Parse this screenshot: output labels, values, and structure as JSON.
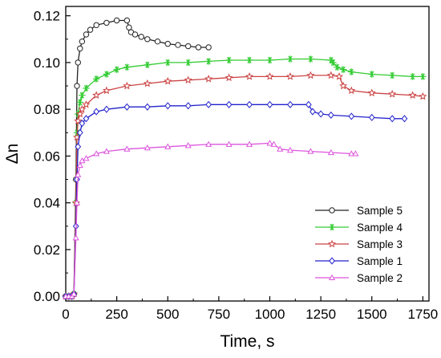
{
  "chart_data": {
    "type": "line",
    "xlabel": "Time, s",
    "ylabel": "Δn",
    "xlim": [
      0,
      1780
    ],
    "ylim": [
      -0.002,
      0.124
    ],
    "x_ticks": [
      0,
      250,
      500,
      750,
      1000,
      1250,
      1500,
      1750
    ],
    "x_tick_labels": [
      "0",
      "250",
      "500",
      "750",
      "1000",
      "1250",
      "1500",
      "1750"
    ],
    "y_ticks": [
      0.0,
      0.02,
      0.04,
      0.06,
      0.08,
      0.1,
      0.12
    ],
    "y_tick_labels": [
      "0.00",
      "0.02",
      "0.04",
      "0.06",
      "0.08",
      "0.10",
      "0.12"
    ],
    "legend_position": "lower-right",
    "series": [
      {
        "name": "Sample 5",
        "color": "#222222",
        "marker": "circle",
        "x": [
          0,
          15,
          30,
          40,
          50,
          55,
          60,
          70,
          80,
          100,
          120,
          150,
          200,
          250,
          300,
          310,
          320,
          340,
          370,
          400,
          450,
          500,
          550,
          600,
          650,
          700
        ],
        "y": [
          0.0,
          0.0,
          0.0,
          0.001,
          0.05,
          0.09,
          0.1,
          0.106,
          0.109,
          0.112,
          0.114,
          0.116,
          0.117,
          0.118,
          0.118,
          0.115,
          0.113,
          0.112,
          0.111,
          0.11,
          0.109,
          0.108,
          0.1075,
          0.107,
          0.1065,
          0.1065
        ]
      },
      {
        "name": "Sample 4",
        "color": "#33cc33",
        "marker": "asterisk",
        "x": [
          0,
          15,
          30,
          40,
          50,
          55,
          60,
          70,
          80,
          100,
          150,
          200,
          250,
          300,
          400,
          500,
          600,
          700,
          800,
          900,
          1000,
          1100,
          1200,
          1300,
          1310,
          1330,
          1360,
          1400,
          1500,
          1600,
          1700,
          1750
        ],
        "y": [
          0.0,
          0.0,
          0.0,
          0.001,
          0.04,
          0.07,
          0.078,
          0.083,
          0.086,
          0.089,
          0.093,
          0.095,
          0.097,
          0.098,
          0.099,
          0.1,
          0.1,
          0.1005,
          0.101,
          0.101,
          0.101,
          0.1015,
          0.1015,
          0.101,
          0.1,
          0.098,
          0.097,
          0.096,
          0.095,
          0.0945,
          0.094,
          0.094
        ]
      },
      {
        "name": "Sample 3",
        "color": "#cc4444",
        "marker": "star",
        "x": [
          0,
          15,
          30,
          40,
          50,
          55,
          60,
          70,
          80,
          100,
          150,
          200,
          300,
          400,
          500,
          600,
          700,
          800,
          900,
          1000,
          1100,
          1200,
          1300,
          1340,
          1360,
          1400,
          1500,
          1600,
          1700,
          1750
        ],
        "y": [
          0.0,
          0.0,
          0.0,
          0.001,
          0.04,
          0.068,
          0.075,
          0.078,
          0.08,
          0.082,
          0.086,
          0.088,
          0.09,
          0.091,
          0.092,
          0.0925,
          0.093,
          0.0935,
          0.094,
          0.094,
          0.094,
          0.0945,
          0.0945,
          0.094,
          0.09,
          0.088,
          0.087,
          0.0865,
          0.086,
          0.0855
        ]
      },
      {
        "name": "Sample 1",
        "color": "#2222cc",
        "marker": "diamond",
        "x": [
          0,
          15,
          30,
          40,
          50,
          55,
          60,
          70,
          80,
          100,
          150,
          200,
          300,
          400,
          500,
          600,
          700,
          800,
          900,
          1000,
          1100,
          1190,
          1210,
          1250,
          1300,
          1400,
          1500,
          1600,
          1660
        ],
        "y": [
          0.0,
          0.0,
          0.0,
          0.001,
          0.03,
          0.05,
          0.064,
          0.07,
          0.074,
          0.076,
          0.079,
          0.08,
          0.081,
          0.081,
          0.0815,
          0.0815,
          0.082,
          0.082,
          0.082,
          0.082,
          0.082,
          0.082,
          0.079,
          0.078,
          0.0775,
          0.077,
          0.0765,
          0.076,
          0.076
        ]
      },
      {
        "name": "Sample 2",
        "color": "#dd55dd",
        "marker": "triangle",
        "x": [
          0,
          15,
          30,
          40,
          50,
          55,
          60,
          70,
          80,
          100,
          150,
          200,
          300,
          400,
          500,
          600,
          700,
          800,
          900,
          1000,
          1020,
          1050,
          1100,
          1200,
          1300,
          1400,
          1420
        ],
        "y": [
          0.0,
          0.0,
          0.0,
          0.001,
          0.025,
          0.04,
          0.052,
          0.056,
          0.058,
          0.059,
          0.061,
          0.062,
          0.063,
          0.0635,
          0.064,
          0.0645,
          0.065,
          0.065,
          0.065,
          0.0655,
          0.065,
          0.063,
          0.0625,
          0.062,
          0.0615,
          0.061,
          0.061
        ]
      }
    ]
  }
}
